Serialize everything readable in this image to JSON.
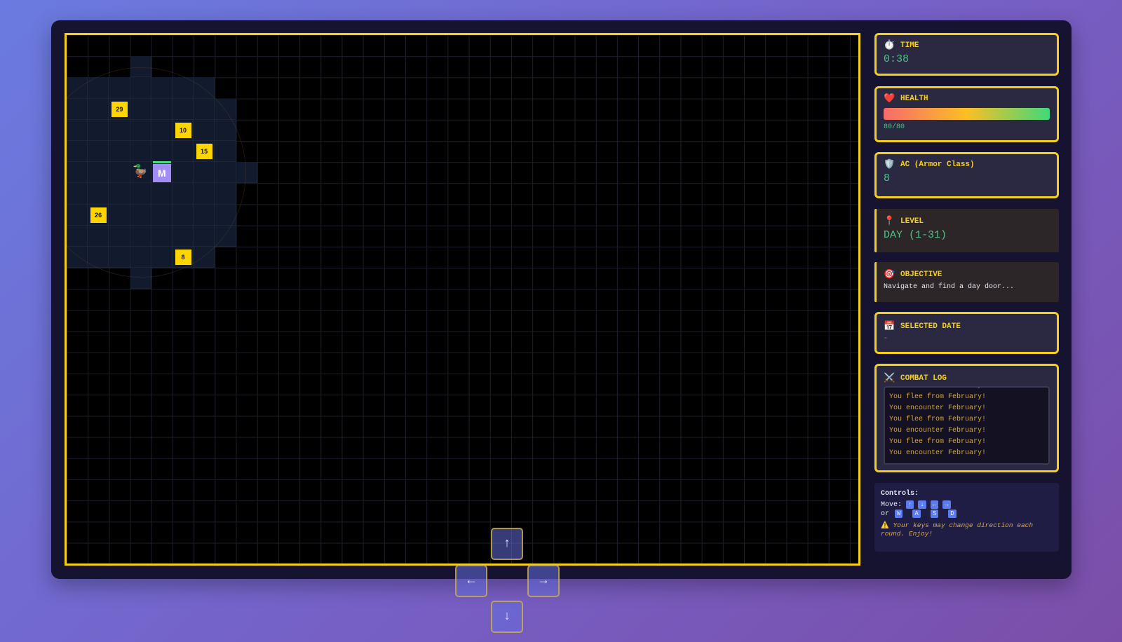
{
  "board": {
    "days": [
      "29",
      "10",
      "15",
      "26",
      "8"
    ],
    "player_label": "M",
    "player_icon": "duck-icon"
  },
  "dpad": {
    "up": "↑",
    "left": "←",
    "right": "→",
    "down": "↓"
  },
  "time": {
    "icon": "⏱️",
    "label": "TIME",
    "value": "0:38"
  },
  "health": {
    "icon": "❤️",
    "label": "HEALTH",
    "value": "80/80",
    "fraction": 1.0
  },
  "ac": {
    "icon": "🛡️",
    "label": "AC (Armor Class)",
    "value": "8"
  },
  "level": {
    "icon": "📍",
    "label": "LEVEL",
    "value": "DAY (1-31)"
  },
  "objective": {
    "icon": "🎯",
    "label": "OBJECTIVE",
    "value": "Navigate and find a day door..."
  },
  "selected_date": {
    "icon": "📅",
    "label": "SELECTED DATE",
    "value": "-"
  },
  "combat_log": {
    "icon": "⚔️",
    "label": "COMBAT LOG",
    "entries": [
      "You encounter February!",
      "You flee from February!",
      "You encounter February!",
      "You flee from February!",
      "You encounter February!",
      "You flee from February!",
      "You encounter February!"
    ]
  },
  "controls": {
    "title": "Controls:",
    "move_label": "Move:",
    "move_keys": [
      "↑",
      "↓",
      "←",
      "→"
    ],
    "or_label": "or",
    "alt_keys": [
      "W",
      "A",
      "S",
      "D"
    ],
    "warning_icon": "⚠️",
    "warning": "Your keys may change direction each round. Enjoy!"
  },
  "colors": {
    "accent": "#f5cf1b",
    "value": "#4bc386",
    "player": "#a48cf5",
    "day_tile": "#ffd500"
  }
}
